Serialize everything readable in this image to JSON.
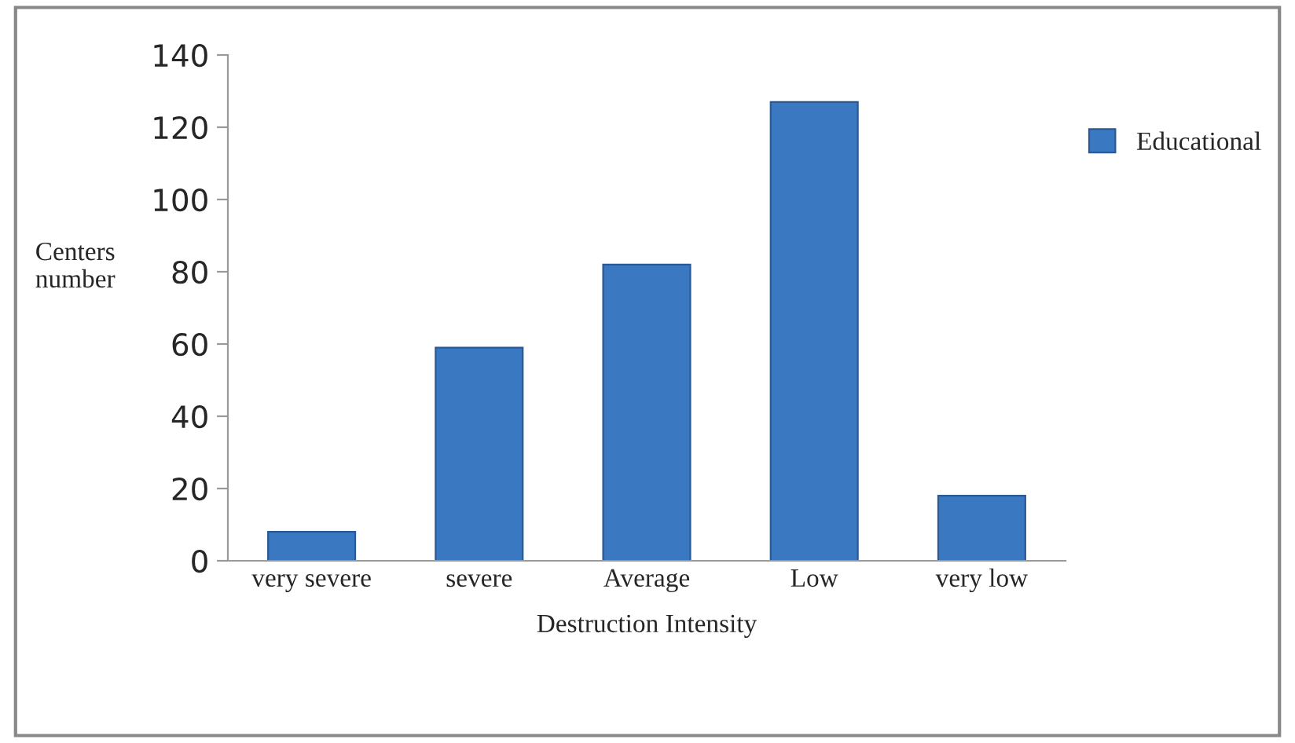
{
  "chart_data": {
    "type": "bar",
    "xlabel": "Destruction Intensity",
    "ylabel": "Centers\nnumber",
    "categories": [
      "very severe",
      "severe",
      "Average",
      "Low",
      "very low"
    ],
    "series": [
      {
        "name": "Educational",
        "color": "#3a78c2",
        "values": [
          8,
          59,
          82,
          127,
          18
        ]
      }
    ],
    "ylim": [
      0,
      140
    ],
    "yticks": [
      0,
      20,
      40,
      60,
      80,
      100,
      120,
      140
    ],
    "grid": false,
    "legend": "top right"
  }
}
